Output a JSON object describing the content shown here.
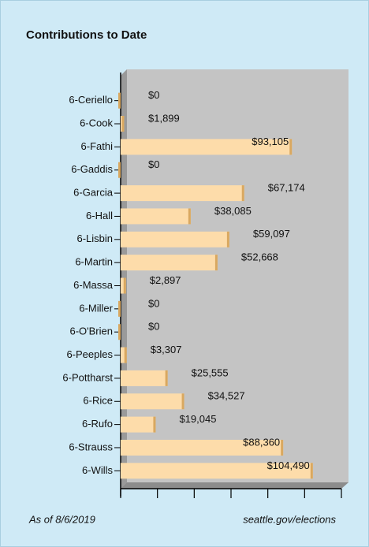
{
  "chart_data": {
    "type": "bar",
    "orientation": "horizontal",
    "title": "Contributions to Date",
    "categories": [
      "6-Ceriello",
      "6-Cook",
      "6-Fathi",
      "6-Gaddis",
      "6-Garcia",
      "6-Hall",
      "6-Lisbin",
      "6-Martin",
      "6-Massa",
      "6-Miller",
      "6-O'Brien",
      "6-Peeples",
      "6-Pottharst",
      "6-Rice",
      "6-Rufo",
      "6-Strauss",
      "6-Wills"
    ],
    "values": [
      0,
      1899,
      93105,
      0,
      67174,
      38085,
      59097,
      52668,
      2897,
      0,
      0,
      3307,
      25555,
      34527,
      19045,
      88360,
      104490
    ],
    "value_labels": [
      "$0",
      "$1,899",
      "$93,105",
      "$0",
      "$67,174",
      "$38,085",
      "$59,097",
      "$52,668",
      "$2,897",
      "$0",
      "$0",
      "$3,307",
      "$25,555",
      "$34,527",
      "$19,045",
      "$88,360",
      "$104,490"
    ],
    "color": "#fddcaa",
    "xlim": [
      0,
      120000
    ],
    "xticks": [
      0,
      20000,
      40000,
      60000,
      80000,
      100000,
      120000
    ],
    "footer_left": "As of 8/6/2019",
    "footer_right": "seattle.gov/elections"
  }
}
